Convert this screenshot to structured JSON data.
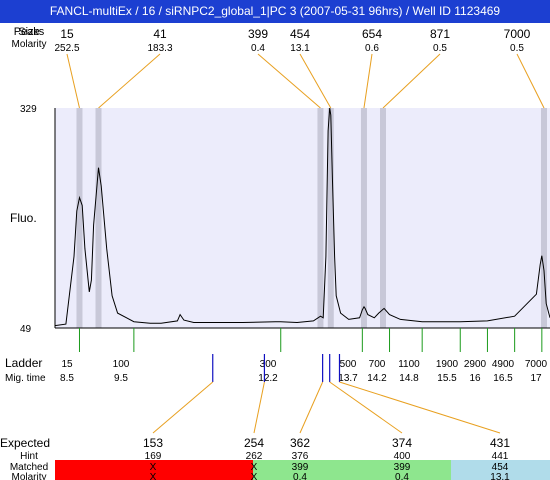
{
  "title": "FANCL-multiEx / 16 / siRNPC2_global_1|PC 3 (2007-05-31 96hrs) / Well ID 1123469",
  "labels": {
    "peaks": "Peaks",
    "size": "Size",
    "molarity": "Molarity",
    "fluo": "Fluo.",
    "ladder": "Ladder",
    "mig_time": "Mig. time",
    "expected": "Expected",
    "hint": "Hint",
    "matched": "Matched"
  },
  "colors": {
    "title_bg": "#1c3fd1",
    "plot_bg": "#ececfb",
    "band": "#c8c8d8",
    "connector": "#e8a020",
    "ladder_tick": "#1a9a1a",
    "marker": "#1010c0",
    "red": "#ff0000",
    "green": "#8ee68e",
    "blue": "#b0dcea",
    "expected_red": "#ff0000"
  },
  "chart_data": {
    "type": "line",
    "ylabel": "Fluo.",
    "ylim": [
      49,
      329
    ],
    "y_ticks": [
      49,
      329
    ],
    "peaks": [
      {
        "size": "15",
        "molarity": "252.5"
      },
      {
        "size": "41",
        "molarity": "183.3"
      },
      {
        "size": "399",
        "molarity": "0.4"
      },
      {
        "size": "454",
        "molarity": "13.1"
      },
      {
        "size": "654",
        "molarity": "0.6"
      },
      {
        "size": "871",
        "molarity": "0.5"
      },
      {
        "size": "7000",
        "molarity": "0.5"
      }
    ],
    "ladder": [
      {
        "size": "15",
        "mig_time": "8.5"
      },
      {
        "size": "100",
        "mig_time": "9.5"
      },
      {
        "size": "300",
        "mig_time": "12.2"
      },
      {
        "size": "500",
        "mig_time": "13.7"
      },
      {
        "size": "700",
        "mig_time": "14.2"
      },
      {
        "size": "1100",
        "mig_time": "14.8"
      },
      {
        "size": "1900",
        "mig_time": "15.5"
      },
      {
        "size": "2900",
        "mig_time": "16"
      },
      {
        "size": "4900",
        "mig_time": "16.5"
      },
      {
        "size": "7000",
        "mig_time": "17"
      }
    ],
    "mig_range": [
      8.05,
      17.15
    ],
    "trace": {
      "x": [
        8.05,
        8.25,
        8.4,
        8.45,
        8.5,
        8.55,
        8.6,
        8.68,
        8.72,
        8.76,
        8.85,
        8.9,
        9.0,
        9.1,
        9.2,
        9.5,
        9.8,
        10.0,
        10.3,
        10.35,
        10.42,
        10.6,
        11.0,
        11.5,
        12.1,
        12.2,
        12.5,
        12.8,
        12.93,
        12.98,
        13.03,
        13.07,
        13.1,
        13.12,
        13.15,
        13.19,
        13.22,
        13.3,
        13.45,
        13.65,
        13.7,
        13.73,
        13.75,
        13.8,
        13.92,
        14.0,
        14.1,
        14.2,
        14.4,
        14.8,
        15.5,
        16.0,
        16.5,
        16.9,
        16.97,
        17.0,
        17.04,
        17.08,
        17.15
      ],
      "y": [
        52,
        54,
        140,
        198,
        215,
        205,
        150,
        95,
        110,
        180,
        253,
        230,
        150,
        90,
        68,
        57,
        55,
        55,
        58,
        66,
        59,
        56,
        56,
        56,
        57,
        57,
        56,
        58,
        64,
        62,
        140,
        300,
        329,
        320,
        240,
        140,
        90,
        68,
        60,
        62,
        72,
        76,
        74,
        66,
        62,
        68,
        74,
        66,
        60,
        57,
        57,
        58,
        64,
        92,
        130,
        141,
        122,
        80,
        62
      ]
    },
    "bands": [
      8.5,
      8.85,
      12.93,
      13.12,
      13.73,
      14.08,
      17.04
    ],
    "markers": [
      10.95,
      11.9,
      12.97,
      13.1,
      13.28
    ],
    "expected": [
      {
        "expected": "153",
        "hint": "169",
        "matched": "X",
        "molarity": "X"
      },
      {
        "expected": "254",
        "hint": "262",
        "matched": "X",
        "molarity": "X"
      },
      {
        "expected": "362",
        "hint": "376",
        "matched": "399",
        "molarity": "0.4"
      },
      {
        "expected": "374",
        "hint": "400",
        "matched": "399",
        "molarity": "0.4"
      },
      {
        "expected": "431",
        "hint": "441",
        "matched": "454",
        "molarity": "13.1"
      }
    ]
  }
}
